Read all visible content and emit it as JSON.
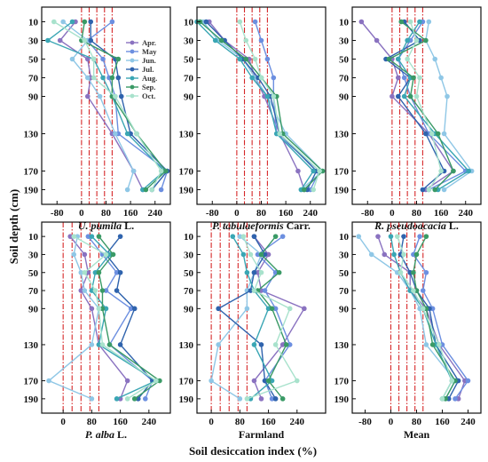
{
  "figure": {
    "ylabel": "Soil depth (cm)",
    "xlabel": "Soil desiccation index (%)"
  },
  "legend": [
    "Apr.",
    "May",
    "Jun.",
    "Jul.",
    "Aug.",
    "Sep.",
    "Oct."
  ],
  "colors": [
    "#8a72c0",
    "#6c8fe0",
    "#8fc7e6",
    "#2f63ad",
    "#3aa6b4",
    "#3a9a66",
    "#a8e2cc"
  ],
  "refline_color": "#d62728",
  "chart_data": [
    {
      "type": "line",
      "panel_title": "U. pumila",
      "panel_title_suffix": " L.",
      "italic": true,
      "x_ticks": [
        -80,
        0,
        80,
        160,
        240
      ],
      "y_ticks": [
        10,
        30,
        50,
        70,
        90,
        130,
        170,
        190
      ],
      "xlim": [
        -130,
        290
      ],
      "ref_lines": [
        0,
        25,
        50,
        75,
        100
      ],
      "series": [
        {
          "name": "Apr.",
          "values": [
            -20,
            -70,
            20,
            30,
            20,
            100,
            170,
            200
          ]
        },
        {
          "name": "May",
          "values": [
            100,
            20,
            70,
            90,
            110,
            120,
            280,
            260
          ]
        },
        {
          "name": "Jun.",
          "values": [
            -60,
            20,
            -30,
            20,
            60,
            110,
            170,
            150
          ]
        },
        {
          "name": "Jul.",
          "values": [
            30,
            30,
            110,
            120,
            130,
            160,
            280,
            230
          ]
        },
        {
          "name": "Aug.",
          "values": [
            -30,
            -110,
            40,
            70,
            100,
            150,
            270,
            200
          ]
        },
        {
          "name": "Sep.",
          "values": [
            10,
            0,
            120,
            100,
            100,
            180,
            275,
            210
          ]
        },
        {
          "name": "Oct.",
          "values": [
            -90,
            10,
            40,
            40,
            110,
            180,
            260,
            230
          ]
        }
      ]
    },
    {
      "type": "line",
      "panel_title": "P. tabulaeformis",
      "panel_title_suffix": " Carr.",
      "italic": true,
      "x_ticks": [
        -80,
        0,
        80,
        160,
        240
      ],
      "y_ticks": [
        10,
        30,
        50,
        70,
        90,
        130,
        170,
        190
      ],
      "xlim": [
        -130,
        290
      ],
      "ref_lines": [
        0,
        25,
        50,
        75,
        100
      ],
      "series": [
        {
          "name": "Apr.",
          "values": [
            -90,
            -40,
            40,
            60,
            90,
            140,
            200,
            220
          ]
        },
        {
          "name": "May",
          "values": [
            60,
            80,
            100,
            120,
            120,
            130,
            270,
            240
          ]
        },
        {
          "name": "Jun.",
          "values": [
            -110,
            -60,
            20,
            60,
            100,
            160,
            280,
            210
          ]
        },
        {
          "name": "Jul.",
          "values": [
            -100,
            -40,
            20,
            70,
            110,
            140,
            260,
            230
          ]
        },
        {
          "name": "Aug.",
          "values": [
            -130,
            -70,
            10,
            50,
            100,
            130,
            250,
            210
          ]
        },
        {
          "name": "Sep.",
          "values": [
            -120,
            -50,
            30,
            80,
            130,
            150,
            280,
            220
          ]
        },
        {
          "name": "Oct.",
          "values": [
            10,
            30,
            60,
            80,
            120,
            140,
            270,
            250
          ]
        }
      ]
    },
    {
      "type": "line",
      "panel_title": "R. pseudoacacia",
      "panel_title_suffix": " L.",
      "italic": true,
      "x_ticks": [
        -80,
        0,
        80,
        160,
        240
      ],
      "y_ticks": [
        10,
        30,
        50,
        70,
        90,
        130,
        170,
        190
      ],
      "xlim": [
        -130,
        290
      ],
      "ref_lines": [
        0,
        25,
        50,
        75,
        100
      ],
      "series": [
        {
          "name": "Apr.",
          "values": [
            -100,
            -50,
            0,
            20,
            0,
            120,
            200,
            110
          ]
        },
        {
          "name": "May",
          "values": [
            100,
            60,
            20,
            40,
            60,
            120,
            240,
            120
          ]
        },
        {
          "name": "Jun.",
          "values": [
            120,
            110,
            140,
            160,
            180,
            170,
            260,
            170
          ]
        },
        {
          "name": "Jul.",
          "values": [
            40,
            90,
            -20,
            60,
            20,
            110,
            170,
            100
          ]
        },
        {
          "name": "Aug.",
          "values": [
            90,
            50,
            20,
            60,
            40,
            140,
            250,
            150
          ]
        },
        {
          "name": "Sep.",
          "values": [
            30,
            110,
            -10,
            70,
            60,
            150,
            200,
            140
          ]
        },
        {
          "name": "Oct.",
          "values": [
            60,
            80,
            50,
            90,
            80,
            130,
            160,
            120
          ]
        }
      ]
    },
    {
      "type": "line",
      "panel_title": "P. alba",
      "panel_title_suffix": " L.",
      "italic": true,
      "x_ticks": [
        0,
        80,
        160,
        240
      ],
      "y_ticks": [
        10,
        30,
        50,
        70,
        90,
        130,
        170,
        190
      ],
      "xlim": [
        -60,
        300
      ],
      "ref_lines": [
        0,
        25,
        50,
        75,
        100
      ],
      "series": [
        {
          "name": "Apr.",
          "values": [
            20,
            60,
            70,
            50,
            80,
            100,
            180,
            160
          ]
        },
        {
          "name": "May",
          "values": [
            70,
            110,
            150,
            120,
            190,
            130,
            250,
            230
          ]
        },
        {
          "name": "Jun.",
          "values": [
            40,
            30,
            50,
            60,
            100,
            80,
            -40,
            80
          ]
        },
        {
          "name": "Jul.",
          "values": [
            160,
            120,
            160,
            150,
            200,
            160,
            250,
            210
          ]
        },
        {
          "name": "Aug.",
          "values": [
            80,
            130,
            90,
            80,
            120,
            100,
            260,
            150
          ]
        },
        {
          "name": "Sep.",
          "values": [
            100,
            140,
            100,
            110,
            110,
            130,
            270,
            200
          ]
        },
        {
          "name": "Oct.",
          "values": [
            30,
            120,
            60,
            90,
            100,
            110,
            260,
            180
          ]
        }
      ]
    },
    {
      "type": "line",
      "panel_title": "Farmland",
      "panel_title_suffix": "",
      "italic": false,
      "x_ticks": [
        0,
        80,
        160,
        240
      ],
      "y_ticks": [
        10,
        30,
        50,
        70,
        90,
        130,
        170,
        190
      ],
      "xlim": [
        -40,
        320
      ],
      "ref_lines": [
        0,
        25,
        50,
        75,
        100
      ],
      "series": [
        {
          "name": "Apr.",
          "values": [
            120,
            160,
            130,
            140,
            260,
            200,
            120,
            140
          ]
        },
        {
          "name": "May",
          "values": [
            200,
            130,
            180,
            150,
            180,
            220,
            150,
            170
          ]
        },
        {
          "name": "Jun.",
          "values": [
            80,
            140,
            120,
            100,
            100,
            20,
            0,
            80
          ]
        },
        {
          "name": "Jul.",
          "values": [
            120,
            150,
            120,
            110,
            20,
            140,
            150,
            180
          ]
        },
        {
          "name": "Aug.",
          "values": [
            60,
            90,
            100,
            120,
            160,
            120,
            170,
            110
          ]
        },
        {
          "name": "Sep.",
          "values": [
            180,
            140,
            190,
            130,
            170,
            210,
            160,
            200
          ]
        },
        {
          "name": "Oct.",
          "values": [
            90,
            110,
            140,
            120,
            220,
            180,
            240,
            100
          ]
        }
      ]
    },
    {
      "type": "line",
      "panel_title": "Mean",
      "panel_title_suffix": "",
      "italic": false,
      "x_ticks": [
        -80,
        0,
        80,
        160,
        240
      ],
      "y_ticks": [
        10,
        30,
        50,
        70,
        90,
        130,
        170,
        190
      ],
      "xlim": [
        -120,
        280
      ],
      "ref_lines": [
        0,
        25,
        50,
        75,
        100
      ],
      "series": [
        {
          "name": "Apr.",
          "values": [
            -40,
            -20,
            60,
            60,
            110,
            150,
            230,
            210
          ]
        },
        {
          "name": "May",
          "values": [
            90,
            70,
            110,
            100,
            130,
            160,
            240,
            200
          ]
        },
        {
          "name": "Jun.",
          "values": [
            -100,
            -60,
            20,
            60,
            90,
            110,
            200,
            170
          ]
        },
        {
          "name": "Jul.",
          "values": [
            40,
            30,
            60,
            80,
            120,
            140,
            210,
            180
          ]
        },
        {
          "name": "Aug.",
          "values": [
            0,
            10,
            30,
            60,
            100,
            140,
            190,
            160
          ]
        },
        {
          "name": "Sep.",
          "values": [
            110,
            80,
            70,
            80,
            110,
            130,
            200,
            170
          ]
        },
        {
          "name": "Oct.",
          "values": [
            20,
            40,
            30,
            70,
            100,
            150,
            190,
            160
          ]
        }
      ]
    }
  ]
}
